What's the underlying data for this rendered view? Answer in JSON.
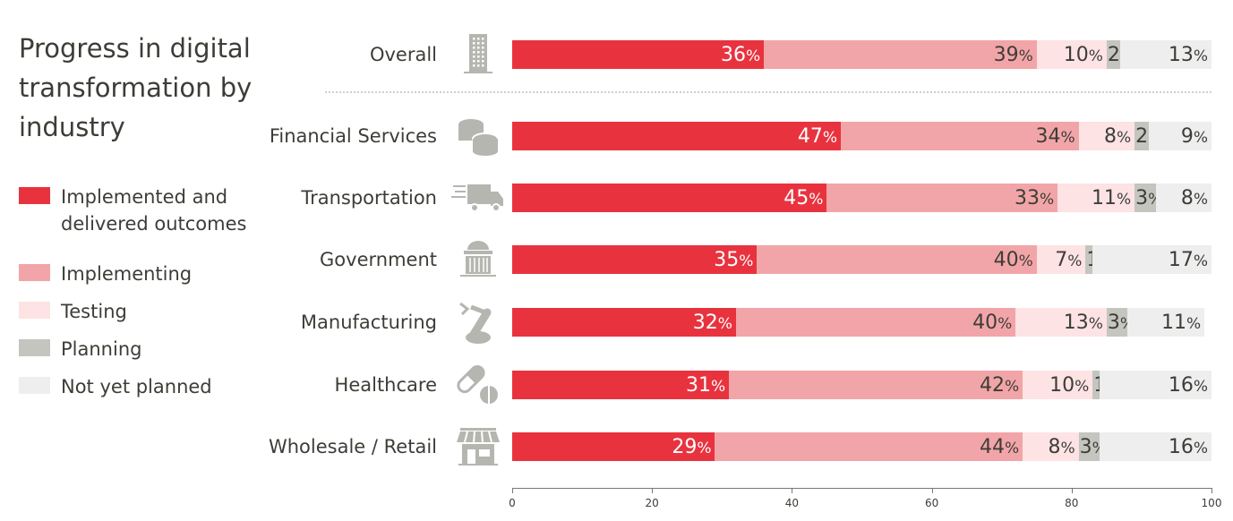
{
  "title": "Progress in digital transformation by industry",
  "legend": [
    {
      "label": "Implemented and delivered outcomes",
      "color": "#e8333f"
    },
    {
      "label": "Implementing",
      "color": "#f2a5a8"
    },
    {
      "label": "Testing",
      "color": "#fde3e3"
    },
    {
      "label": "Planning",
      "color": "#c4c5bf"
    },
    {
      "label": "Not yet planned",
      "color": "#eeeeee"
    }
  ],
  "chart_data": {
    "type": "bar",
    "orientation": "horizontal",
    "stacked": true,
    "title": "Progress in digital transformation by industry",
    "categories": [
      "Overall",
      "Financial Services",
      "Transportation",
      "Government",
      "Manufacturing",
      "Healthcare",
      "Wholesale / Retail"
    ],
    "icons": [
      "building-icon",
      "coins-icon",
      "truck-icon",
      "government-building-icon",
      "robot-arm-icon",
      "pills-icon",
      "store-icon"
    ],
    "series": [
      {
        "name": "Implemented and delivered outcomes",
        "color": "#e8333f",
        "values": [
          36,
          47,
          45,
          35,
          32,
          31,
          29
        ]
      },
      {
        "name": "Implementing",
        "color": "#f2a5a8",
        "values": [
          39,
          34,
          33,
          40,
          40,
          42,
          44
        ]
      },
      {
        "name": "Testing",
        "color": "#fde3e3",
        "values": [
          10,
          8,
          11,
          7,
          13,
          10,
          8
        ]
      },
      {
        "name": "Planning",
        "color": "#c4c5bf",
        "values": [
          2,
          2,
          3,
          1,
          3,
          1,
          3
        ]
      },
      {
        "name": "Not yet planned",
        "color": "#eeeeee",
        "values": [
          13,
          9,
          8,
          17,
          11,
          16,
          16
        ]
      }
    ],
    "unit": "%",
    "xlim": [
      0,
      100
    ],
    "xticks": [
      0,
      20,
      40,
      60,
      80,
      100
    ],
    "legend_position": "left",
    "grid": false
  }
}
